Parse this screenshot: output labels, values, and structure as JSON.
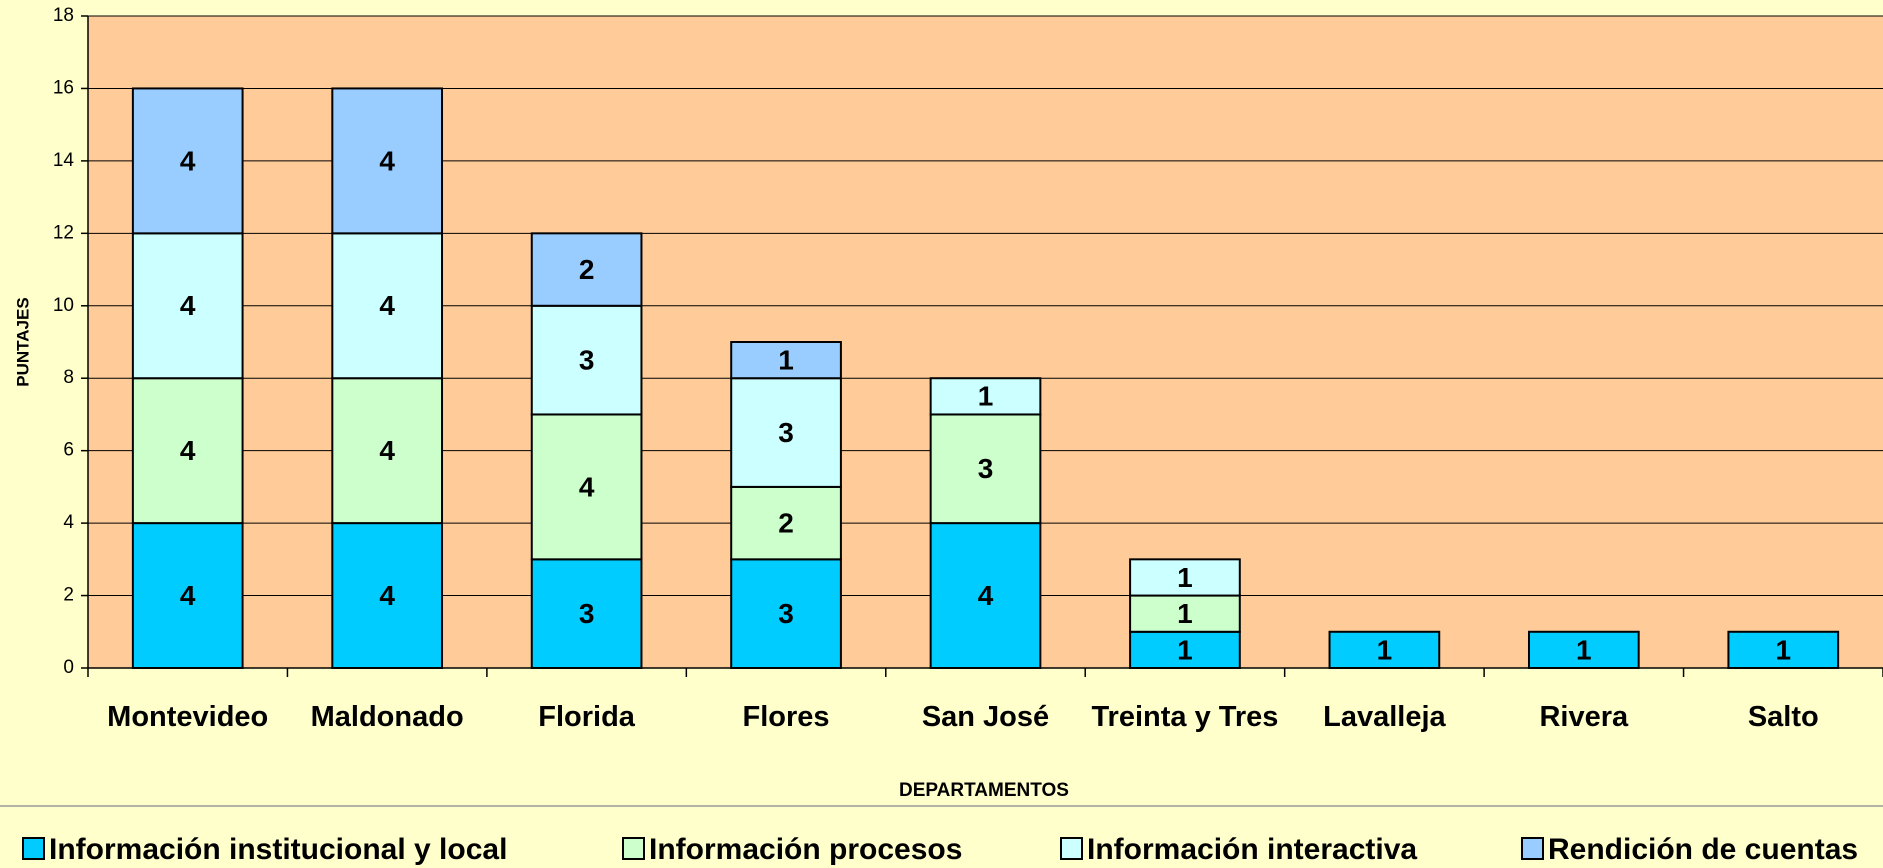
{
  "chart_data": {
    "type": "stacked_bar",
    "x_label": "DEPARTAMENTOS",
    "y_label": "PUNTAJES",
    "categories": [
      "Montevideo",
      "Maldonado",
      "Florida",
      "Flores",
      "San José",
      "Treinta y Tres",
      "Lavalleja",
      "Rivera",
      "Salto"
    ],
    "series": [
      {
        "name": "Información institucional y local",
        "color": "#00ccff",
        "values": [
          4,
          4,
          3,
          3,
          4,
          1,
          1,
          1,
          1
        ]
      },
      {
        "name": "Información procesos",
        "color": "#ccffcc",
        "values": [
          4,
          4,
          4,
          2,
          3,
          1,
          null,
          null,
          null
        ]
      },
      {
        "name": "Información interactiva",
        "color": "#ccffff",
        "values": [
          4,
          4,
          3,
          3,
          1,
          1,
          null,
          null,
          null
        ]
      },
      {
        "name": "Rendición de cuentas",
        "color": "#99ccff",
        "values": [
          4,
          4,
          2,
          1,
          null,
          null,
          null,
          null,
          null
        ]
      }
    ],
    "ylim": [
      0,
      18
    ],
    "yticks": [
      0,
      2,
      4,
      6,
      8,
      10,
      12,
      14,
      16,
      18
    ],
    "grid": true,
    "legend": "bottom"
  }
}
